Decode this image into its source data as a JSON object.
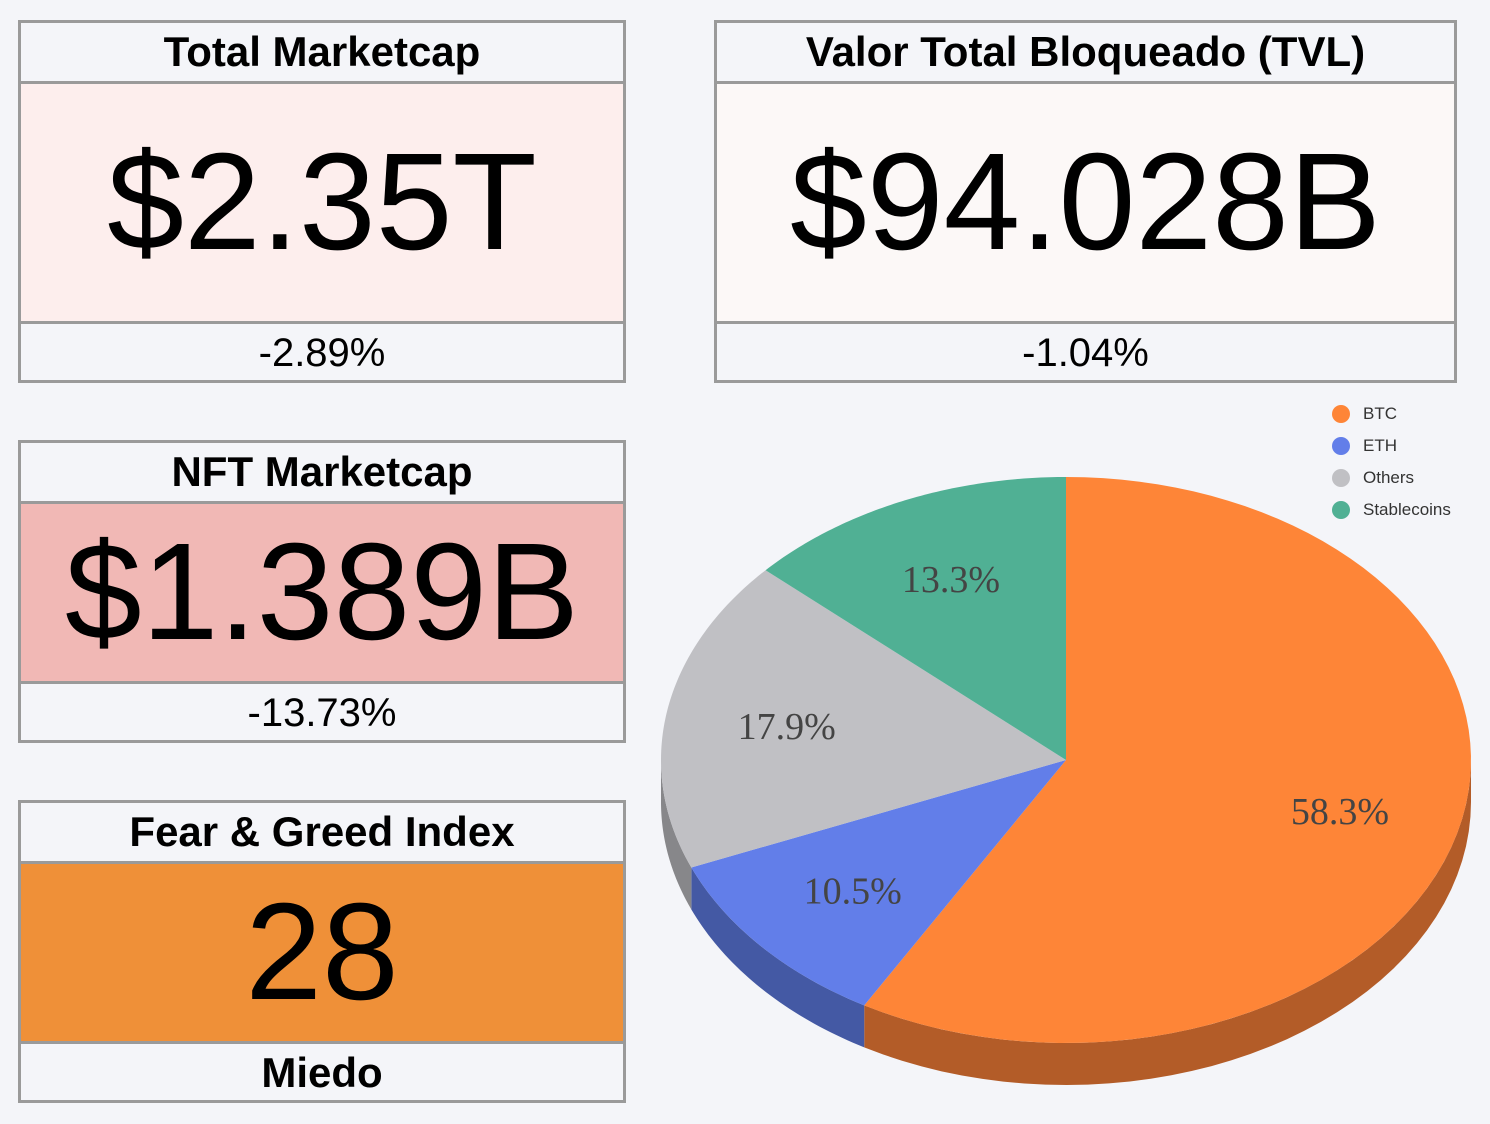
{
  "cards": {
    "total_marketcap": {
      "title": "Total Marketcap",
      "value": "$2.35T",
      "change": "-2.89%",
      "bg": "#fdeeed"
    },
    "tvl": {
      "title": "Valor Total Bloqueado (TVL)",
      "value": "$94.028B",
      "change": "-1.04%",
      "bg": "#fcf8f7"
    },
    "nft_marketcap": {
      "title": "NFT Marketcap",
      "value": "$1.389B",
      "change": "-13.73%",
      "bg": "#f1b8b5"
    },
    "fear_greed": {
      "title": "Fear & Greed Index",
      "value": "28",
      "label": "Miedo",
      "bg": "#ef9038"
    }
  },
  "chart_data": {
    "type": "pie",
    "categories": [
      "BTC",
      "ETH",
      "Others",
      "Stablecoins"
    ],
    "values": [
      58.3,
      10.5,
      17.9,
      13.3
    ],
    "labels": [
      "58.3%",
      "10.5%",
      "17.9%",
      "13.3%"
    ],
    "colors": [
      "#fe8537",
      "#627ee9",
      "#c0c0c4",
      "#50b094"
    ],
    "side_colors": [
      "#b35c28",
      "#4459a4",
      "#87878a",
      "#388069"
    ],
    "legend_position": "top-right",
    "three_d": true
  }
}
